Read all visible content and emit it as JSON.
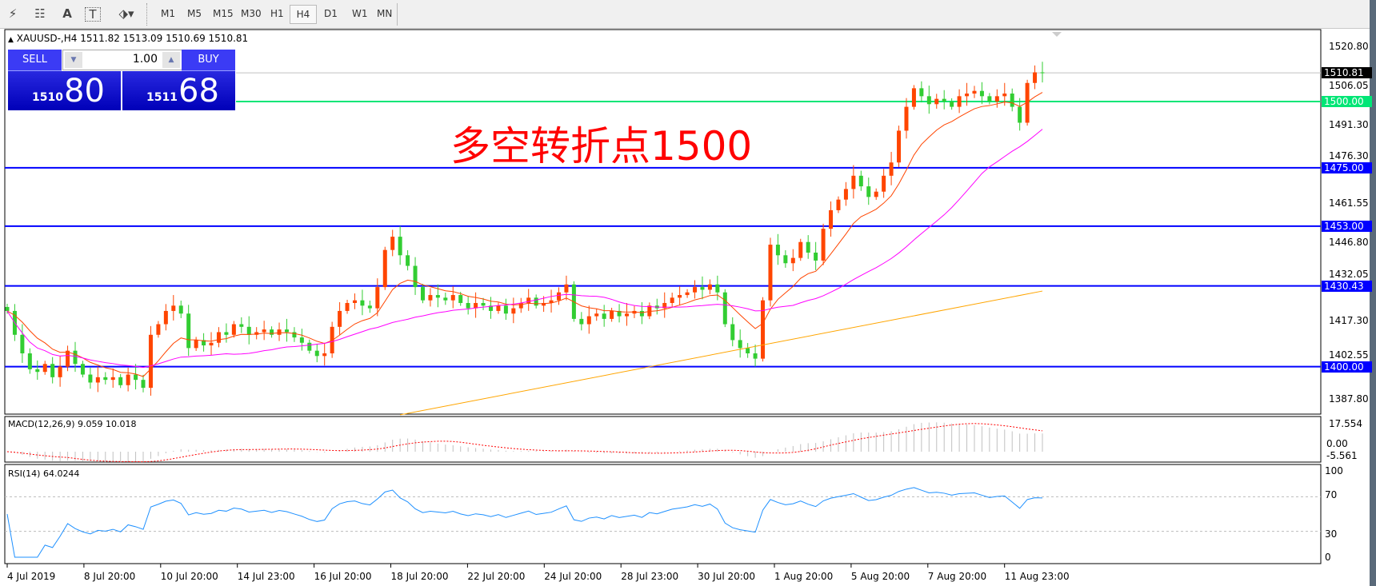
{
  "toolbar": {
    "tools": [
      {
        "name": "elliott-wave-icon",
        "glyph": "⚡"
      },
      {
        "name": "fibonacci-icon",
        "glyph": "☷"
      },
      {
        "name": "text-icon",
        "glyph": "A"
      },
      {
        "name": "text-label-icon",
        "glyph": "T"
      },
      {
        "name": "arrows-icon",
        "glyph": "⬗▾"
      }
    ],
    "timeframes": [
      "M1",
      "M5",
      "M15",
      "M30",
      "H1",
      "H4",
      "D1",
      "W1",
      "MN"
    ],
    "active_timeframe": "H4"
  },
  "symbol_line": "XAUUSD-,H4  1511.82 1513.09 1510.69 1510.81",
  "trade_panel": {
    "sell_label": "SELL",
    "buy_label": "BUY",
    "lot": "1.00",
    "sell_small": "1510",
    "sell_big": "80",
    "buy_small": "1511",
    "buy_big": "68"
  },
  "annotation": "多空转折点1500",
  "price_axis": [
    "1520.80",
    "1506.05",
    "1491.30",
    "1476.30",
    "1461.55",
    "1446.80",
    "1432.05",
    "1417.30",
    "1402.55",
    "1387.80"
  ],
  "levels": [
    {
      "price": 1500.0,
      "label": "1500.00",
      "color": "#00e676"
    },
    {
      "price": 1475.0,
      "label": "1475.00",
      "color": "#0000ff"
    },
    {
      "price": 1453.0,
      "label": "1453.00",
      "color": "#0000ff"
    },
    {
      "price": 1430.43,
      "label": "1430.43",
      "color": "#0000ff"
    },
    {
      "price": 1400.0,
      "label": "1400.00",
      "color": "#0000ff"
    }
  ],
  "current_price": {
    "price": 1510.81,
    "label": "1510.81"
  },
  "colors": {
    "up": "#ff4500",
    "down": "#32cd32",
    "ma_fast": "#ff4500",
    "ma_mid": "#ff00ff",
    "ma_slow": "#ffa500",
    "macd_hist": "#c0c0c0",
    "macd_signal": "#ff0000",
    "rsi": "#1e90ff"
  },
  "closes": [
    1421,
    1412,
    1405,
    1399,
    1398,
    1401,
    1396,
    1400,
    1406,
    1401,
    1397,
    1394,
    1396,
    1395,
    1396,
    1393,
    1397,
    1395,
    1392,
    1412,
    1416,
    1421,
    1423,
    1420,
    1407,
    1410,
    1408,
    1409,
    1413,
    1412,
    1416,
    1415,
    1412,
    1413,
    1414,
    1412,
    1414,
    1413,
    1411,
    1409,
    1406,
    1404,
    1405,
    1415,
    1421,
    1424,
    1425,
    1423,
    1422,
    1430,
    1444,
    1449,
    1442,
    1438,
    1430,
    1425,
    1427,
    1426,
    1425,
    1427,
    1424,
    1422,
    1424,
    1423,
    1421,
    1423,
    1420,
    1422,
    1424,
    1426,
    1423,
    1424,
    1425,
    1428,
    1431,
    1418,
    1416,
    1419,
    1420,
    1418,
    1421,
    1419,
    1420,
    1421,
    1419,
    1423,
    1422,
    1424,
    1426,
    1427,
    1428,
    1430,
    1429,
    1431,
    1428,
    1416,
    1410,
    1407,
    1405,
    1403,
    1425,
    1446,
    1442,
    1439,
    1441,
    1447,
    1443,
    1440,
    1452,
    1459,
    1463,
    1467,
    1472,
    1468,
    1464,
    1466,
    1472,
    1477,
    1489,
    1498,
    1505,
    1502,
    1499,
    1501,
    1500,
    1498,
    1502,
    1503,
    1504,
    1502,
    1500,
    1502,
    1503,
    1498,
    1492,
    1507,
    1511,
    1510.81
  ],
  "ma_slow": {
    "start_price": 1381.8,
    "end_price": 1428.5
  },
  "macd": {
    "label": "MACD(12,26,9) 9.059 10.018",
    "axis": [
      "17.554",
      "0.00",
      "-5.561"
    ]
  },
  "rsi": {
    "label": "RSI(14) 64.0244",
    "axis": [
      "100",
      "70",
      "30",
      "0"
    ]
  },
  "time_axis": [
    "4 Jul 2019",
    "8 Jul 20:00",
    "10 Jul 20:00",
    "14 Jul 23:00",
    "16 Jul 20:00",
    "18 Jul 20:00",
    "22 Jul 20:00",
    "24 Jul 20:00",
    "28 Jul 23:00",
    "30 Jul 20:00",
    "1 Aug 20:00",
    "5 Aug 20:00",
    "7 Aug 20:00",
    "11 Aug 23:00"
  ]
}
